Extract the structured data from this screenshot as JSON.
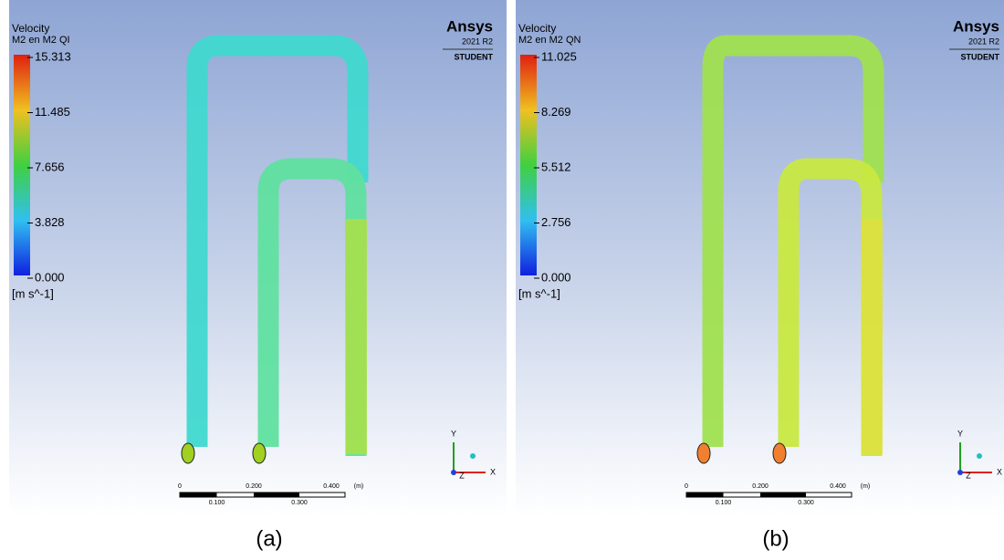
{
  "panels": [
    {
      "legend": {
        "title": "Velocity",
        "subtitle": "M2 en M2 QI",
        "ticks": [
          "15.313",
          "11.485",
          "7.656",
          "3.828",
          "0.000"
        ],
        "unit": "[m s^-1]"
      },
      "logo": {
        "brand": "Ansys",
        "version": "2021 R2",
        "edition": "STUDENT"
      },
      "scale": {
        "top": [
          "0",
          "0.200",
          "0.400",
          "(m)"
        ],
        "bottom": [
          "0.100",
          "0.300"
        ]
      },
      "triad": [
        "Y",
        "Z",
        "X"
      ],
      "caption": "(a)"
    },
    {
      "legend": {
        "title": "Velocity",
        "subtitle": "M2 en M2 QN",
        "ticks": [
          "11.025",
          "8.269",
          "5.512",
          "2.756",
          "0.000"
        ],
        "unit": "[m s^-1]"
      },
      "logo": {
        "brand": "Ansys",
        "version": "2021 R2",
        "edition": "STUDENT"
      },
      "scale": {
        "top": [
          "0",
          "0.200",
          "0.400",
          "(m)"
        ],
        "bottom": [
          "0.100",
          "0.300"
        ]
      },
      "triad": [
        "Y",
        "Z",
        "X"
      ],
      "caption": "(b)"
    }
  ]
}
